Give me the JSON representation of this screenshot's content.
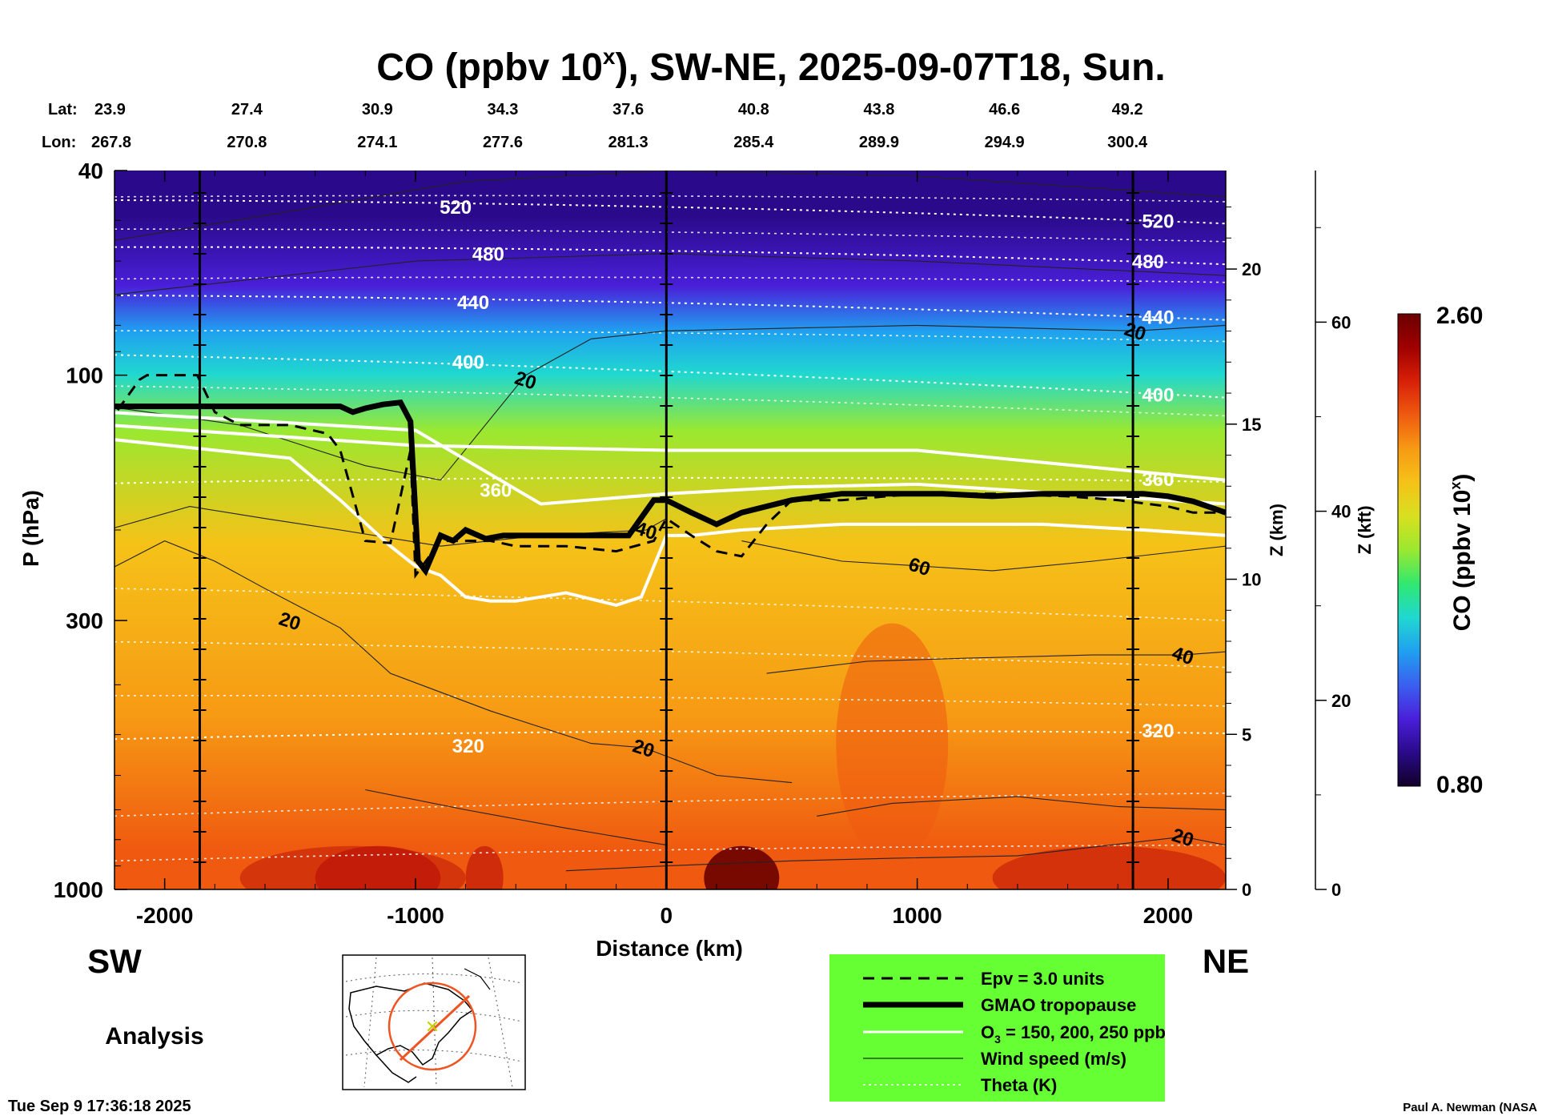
{
  "title": {
    "main": "CO (ppbv 10",
    "superscript": "x",
    "rest": "), SW-NE, 2025-09-07T18, Sun."
  },
  "latlon": {
    "lat_label": "Lat:",
    "lon_label": "Lon:",
    "lat": [
      "23.9",
      "27.4",
      "30.9",
      "34.3",
      "37.6",
      "40.8",
      "43.8",
      "46.6",
      "49.2"
    ],
    "lon": [
      "267.8",
      "270.8",
      "274.1",
      "277.6",
      "281.3",
      "285.4",
      "289.9",
      "294.9",
      "300.4"
    ]
  },
  "axes": {
    "xlabel": "Distance (km)",
    "ylabel": "P (hPa)",
    "z_km_label": "Z (km)",
    "z_kft_label": "Z (kft)",
    "x_ticks": [
      "-2000",
      "-1000",
      "0",
      "1000",
      "2000"
    ],
    "p_ticks": [
      "40",
      "100",
      "300",
      "1000"
    ],
    "z_km_ticks": [
      "20",
      "15",
      "10",
      "5",
      "0"
    ],
    "z_kft_ticks": [
      "60",
      "40",
      "20",
      "0"
    ]
  },
  "direction": {
    "left": "SW",
    "right": "NE"
  },
  "analysis_label": "Analysis",
  "colorbar": {
    "label": "CO (ppbv 10",
    "label_sup": "x",
    "label_end": ")",
    "max": "2.60",
    "min": "0.80",
    "colors": [
      "#120028",
      "#2a0a8a",
      "#4a1fd9",
      "#3a60f0",
      "#20a0f0",
      "#20d8d0",
      "#30e870",
      "#9be830",
      "#d8e020",
      "#f5c218",
      "#f79a14",
      "#ef5a10",
      "#d82008",
      "#a00000",
      "#6a0000"
    ]
  },
  "legend": {
    "epv": "Epv = 3.0 units",
    "tropopause": "GMAO tropopause",
    "o3_prefix": "O",
    "o3_sub": "3",
    "o3_suffix": " = 150, 200, 250 ppb",
    "wind": "Wind speed (m/s)",
    "theta": "Theta (K)"
  },
  "timestamp": "Tue Sep  9 17:36:18 2025",
  "credit": "Paul A. Newman (NASA",
  "chart_data": {
    "type": "heatmap",
    "title": "CO (ppbv 10^x), SW-NE, 2025-09-07T18, Sun.",
    "xlabel": "Distance (km)",
    "ylabel": "P (hPa)",
    "xlim": [
      -2200,
      2230
    ],
    "ylim_hpa": [
      1000,
      40
    ],
    "y_scale": "log",
    "colorbar_range": [
      0.8,
      2.6
    ],
    "co_bands": [
      {
        "p_range_hpa": [
          40,
          60
        ],
        "co": 0.95
      },
      {
        "p_range_hpa": [
          60,
          75
        ],
        "co": 1.1
      },
      {
        "p_range_hpa": [
          75,
          90
        ],
        "co": 1.3
      },
      {
        "p_range_hpa": [
          90,
          110
        ],
        "co": 1.5
      },
      {
        "p_range_hpa": [
          110,
          150
        ],
        "co": 1.75
      },
      {
        "p_range_hpa": [
          150,
          300
        ],
        "co": 1.95
      },
      {
        "p_range_hpa": [
          300,
          700
        ],
        "co": 2.1
      },
      {
        "p_range_hpa": [
          700,
          1000
        ],
        "co": 2.2
      }
    ],
    "theta_contours_K": [
      {
        "label": "520",
        "positions": [
          {
            "x": -840,
            "p": 47
          },
          {
            "x": 1960,
            "p": 50
          }
        ]
      },
      {
        "label": "480",
        "positions": [
          {
            "x": -710,
            "p": 58
          },
          {
            "x": 1920,
            "p": 60
          }
        ]
      },
      {
        "label": "440",
        "positions": [
          {
            "x": -770,
            "p": 72
          },
          {
            "x": 1960,
            "p": 77
          }
        ]
      },
      {
        "label": "400",
        "positions": [
          {
            "x": -790,
            "p": 94
          },
          {
            "x": 1960,
            "p": 109
          }
        ]
      },
      {
        "label": "360",
        "positions": [
          {
            "x": -680,
            "p": 167
          },
          {
            "x": 1960,
            "p": 159
          }
        ]
      },
      {
        "label": "320",
        "positions": [
          {
            "x": -790,
            "p": 525
          },
          {
            "x": 1960,
            "p": 490
          }
        ]
      }
    ],
    "wind_speed_labels_ms": [
      {
        "label": "20",
        "x": -560,
        "p": 102
      },
      {
        "label": "20",
        "x": -1500,
        "p": 300
      },
      {
        "label": "20",
        "x": -90,
        "p": 530
      },
      {
        "label": "20",
        "x": 1870,
        "p": 82
      },
      {
        "label": "20",
        "x": 2060,
        "p": 790
      },
      {
        "label": "40",
        "x": -80,
        "p": 200
      },
      {
        "label": "40",
        "x": 2060,
        "p": 350
      },
      {
        "label": "60",
        "x": 1010,
        "p": 235
      }
    ],
    "gmao_tropopause": {
      "x": [
        -2230,
        -1300,
        -1250,
        -1200,
        -1130,
        -1060,
        -1020,
        -990,
        -960,
        -900,
        -850,
        -800,
        -720,
        -650,
        -500,
        -300,
        -150,
        -50,
        0,
        100,
        200,
        300,
        500,
        700,
        900,
        1100,
        1300,
        1500,
        1700,
        1900,
        2000,
        2100,
        2230
      ],
      "p_hpa": [
        115,
        115,
        118,
        116,
        114,
        113,
        123,
        230,
        240,
        205,
        210,
        200,
        208,
        205,
        205,
        205,
        205,
        175,
        175,
        185,
        195,
        185,
        175,
        170,
        170,
        170,
        172,
        170,
        170,
        170,
        172,
        176,
        185
      ]
    },
    "epv_3_units": {
      "x": [
        -2230,
        -2100,
        -2070,
        -1870,
        -1800,
        -1700,
        -1500,
        -1350,
        -1300,
        -1200,
        -1100,
        -1020,
        -1000,
        -900,
        -700,
        -600,
        -400,
        -200,
        -50,
        0,
        100,
        200,
        300,
        400,
        500,
        700,
        1000,
        1300,
        1600,
        1800,
        2000,
        2100,
        2230
      ],
      "p_hpa": [
        125,
        102,
        100,
        100,
        118,
        125,
        125,
        130,
        140,
        210,
        212,
        140,
        245,
        210,
        210,
        215,
        215,
        220,
        210,
        190,
        205,
        220,
        225,
        195,
        175,
        175,
        170,
        170,
        172,
        175,
        180,
        185,
        185
      ]
    },
    "o3_ppb": [
      {
        "value": 150,
        "x": [
          -2230,
          -1500,
          -1300,
          -1100,
          -1000,
          -950,
          -900,
          -800,
          -700,
          -600,
          -400,
          -200,
          -100,
          0,
          100,
          300,
          700,
          1100,
          1500,
          1900,
          2230
        ],
        "p_hpa": [
          133,
          145,
          175,
          215,
          235,
          240,
          245,
          270,
          275,
          275,
          265,
          280,
          270,
          205,
          205,
          200,
          195,
          195,
          195,
          200,
          205
        ]
      },
      {
        "value": 200,
        "x": [
          -2230,
          -1000,
          0,
          1000,
          2230
        ],
        "p_hpa": [
          125,
          137,
          140,
          140,
          160
        ]
      },
      {
        "value": 250,
        "x": [
          -2230,
          -1000,
          -500,
          0,
          500,
          1000,
          2230
        ],
        "p_hpa": [
          118,
          128,
          178,
          170,
          165,
          163,
          178
        ]
      }
    ],
    "vertical_markers_km": [
      -1860,
      0,
      1860
    ],
    "grid": false
  }
}
